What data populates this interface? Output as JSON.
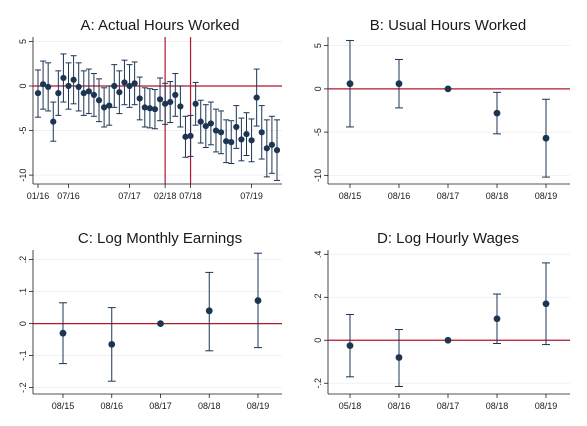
{
  "chart_data": [
    {
      "type": "scatter",
      "title": "A: Actual Hours Worked",
      "x_tick_labels": [
        "01/16",
        "07/16",
        "07/17",
        "02/18",
        "07/18",
        "07/19"
      ],
      "y_ticks": [
        5,
        0,
        -5,
        -10
      ],
      "ylim": [
        -11,
        5.5
      ],
      "grid": true,
      "reference_lines": {
        "y": 0,
        "x_labels": [
          "02/18",
          "07/18"
        ]
      },
      "points": [
        {
          "x": "01/16",
          "y": -0.8,
          "lo": -3.5,
          "hi": 1.8
        },
        {
          "x": "02/16",
          "y": 0.2,
          "lo": -2.6,
          "hi": 2.8
        },
        {
          "x": "03/16",
          "y": -0.1,
          "lo": -2.8,
          "hi": 2.6
        },
        {
          "x": "04/16",
          "y": -4.0,
          "lo": -6.2,
          "hi": -1.8
        },
        {
          "x": "05/16",
          "y": -0.8,
          "lo": -3.3,
          "hi": 1.7
        },
        {
          "x": "06/16",
          "y": 0.9,
          "lo": -1.8,
          "hi": 3.6
        },
        {
          "x": "07/16",
          "y": 0.0,
          "lo": -2.6,
          "hi": 2.6
        },
        {
          "x": "08/16",
          "y": 0.7,
          "lo": -2.0,
          "hi": 3.4
        },
        {
          "x": "09/16",
          "y": -0.1,
          "lo": -2.8,
          "hi": 2.6
        },
        {
          "x": "10/16",
          "y": -0.8,
          "lo": -3.3,
          "hi": 1.7
        },
        {
          "x": "11/16",
          "y": -0.6,
          "lo": -3.1,
          "hi": 1.9
        },
        {
          "x": "12/16",
          "y": -1.0,
          "lo": -3.4,
          "hi": 1.4
        },
        {
          "x": "01/17",
          "y": -1.6,
          "lo": -4.0,
          "hi": 0.8
        },
        {
          "x": "02/17",
          "y": -2.4,
          "lo": -4.6,
          "hi": -0.2
        },
        {
          "x": "03/17",
          "y": -2.2,
          "lo": -4.4,
          "hi": 0.0
        },
        {
          "x": "04/17",
          "y": 0.0,
          "lo": -2.4,
          "hi": 2.4
        },
        {
          "x": "05/17",
          "y": -0.7,
          "lo": -3.1,
          "hi": 1.7
        },
        {
          "x": "06/17",
          "y": 0.4,
          "lo": -2.1,
          "hi": 2.9
        },
        {
          "x": "07/17",
          "y": 0.0,
          "lo": -2.4,
          "hi": 2.4
        },
        {
          "x": "08/17",
          "y": 0.3,
          "lo": -2.1,
          "hi": 2.7
        },
        {
          "x": "09/17",
          "y": -1.4,
          "lo": -3.8,
          "hi": 1.0
        },
        {
          "x": "10/17",
          "y": -2.4,
          "lo": -4.6,
          "hi": -0.2
        },
        {
          "x": "11/17",
          "y": -2.5,
          "lo": -4.7,
          "hi": -0.3
        },
        {
          "x": "12/17",
          "y": -2.6,
          "lo": -4.8,
          "hi": -0.4
        },
        {
          "x": "01/18",
          "y": -1.5,
          "lo": -3.9,
          "hi": 0.9
        },
        {
          "x": "02/18",
          "y": -2.0,
          "lo": -4.3,
          "hi": 0.3
        },
        {
          "x": "03/18",
          "y": -1.8,
          "lo": -4.1,
          "hi": 0.5
        },
        {
          "x": "04/18",
          "y": -1.0,
          "lo": -3.4,
          "hi": 1.4
        },
        {
          "x": "05/18",
          "y": -2.3,
          "lo": -4.6,
          "hi": 0.0
        },
        {
          "x": "06/18",
          "y": -5.7,
          "lo": -8.0,
          "hi": -3.4
        },
        {
          "x": "07/18",
          "y": -5.6,
          "lo": -7.9,
          "hi": -3.3
        },
        {
          "x": "08/18",
          "y": -2.0,
          "lo": -4.4,
          "hi": 0.4
        },
        {
          "x": "09/18",
          "y": -4.0,
          "lo": -6.4,
          "hi": -1.6
        },
        {
          "x": "10/18",
          "y": -4.5,
          "lo": -6.9,
          "hi": -2.1
        },
        {
          "x": "11/18",
          "y": -4.2,
          "lo": -6.6,
          "hi": -1.8
        },
        {
          "x": "12/18",
          "y": -5.0,
          "lo": -7.4,
          "hi": -2.6
        },
        {
          "x": "01/19",
          "y": -5.2,
          "lo": -7.6,
          "hi": -2.8
        },
        {
          "x": "02/19",
          "y": -6.2,
          "lo": -8.6,
          "hi": -3.8
        },
        {
          "x": "03/19",
          "y": -6.3,
          "lo": -8.7,
          "hi": -3.9
        },
        {
          "x": "04/19",
          "y": -4.6,
          "lo": -7.0,
          "hi": -2.2
        },
        {
          "x": "05/19",
          "y": -6.0,
          "lo": -8.4,
          "hi": -3.6
        },
        {
          "x": "06/19",
          "y": -5.4,
          "lo": -7.8,
          "hi": -3.0
        },
        {
          "x": "07/19",
          "y": -6.1,
          "lo": -8.5,
          "hi": -3.7
        },
        {
          "x": "08/19",
          "y": -1.3,
          "lo": -4.5,
          "hi": 1.9
        },
        {
          "x": "09/19",
          "y": -5.2,
          "lo": -8.2,
          "hi": -2.2
        },
        {
          "x": "10/19",
          "y": -7.0,
          "lo": -10.2,
          "hi": -3.8
        },
        {
          "x": "11/19",
          "y": -6.6,
          "lo": -9.8,
          "hi": -3.4
        },
        {
          "x": "12/19",
          "y": -7.2,
          "lo": -10.6,
          "hi": -3.8
        }
      ]
    },
    {
      "type": "scatter",
      "title": "B: Usual Hours Worked",
      "x_tick_labels": [
        "08/15",
        "08/16",
        "08/17",
        "08/18",
        "08/19"
      ],
      "y_ticks": [
        5,
        0,
        -5,
        -10
      ],
      "ylim": [
        -11,
        6
      ],
      "grid": true,
      "reference_lines": {
        "y": 0
      },
      "points": [
        {
          "x": "08/15",
          "y": 0.6,
          "lo": -4.4,
          "hi": 5.6
        },
        {
          "x": "08/16",
          "y": 0.6,
          "lo": -2.2,
          "hi": 3.4
        },
        {
          "x": "08/17",
          "y": 0.0
        },
        {
          "x": "08/18",
          "y": -2.8,
          "lo": -5.2,
          "hi": -0.4
        },
        {
          "x": "08/19",
          "y": -5.7,
          "lo": -10.2,
          "hi": -1.2
        }
      ]
    },
    {
      "type": "scatter",
      "title": "C: Log Monthly Earnings",
      "x_tick_labels": [
        "08/15",
        "08/16",
        "08/17",
        "08/18",
        "08/19"
      ],
      "y_tick_labels": [
        ".2",
        ".1",
        "0",
        "-.1",
        "-.2"
      ],
      "y_ticks": [
        0.2,
        0.1,
        0,
        -0.1,
        -0.2
      ],
      "ylim": [
        -0.22,
        0.23
      ],
      "grid": true,
      "reference_lines": {
        "y": 0
      },
      "points": [
        {
          "x": "08/15",
          "y": -0.03,
          "lo": -0.125,
          "hi": 0.065
        },
        {
          "x": "08/16",
          "y": -0.065,
          "lo": -0.18,
          "hi": 0.05
        },
        {
          "x": "08/17",
          "y": 0.0
        },
        {
          "x": "08/18",
          "y": 0.04,
          "lo": -0.085,
          "hi": 0.16
        },
        {
          "x": "08/19",
          "y": 0.072,
          "lo": -0.075,
          "hi": 0.22
        }
      ]
    },
    {
      "type": "scatter",
      "title": "D: Log Hourly Wages",
      "x_tick_labels": [
        "05/18",
        "08/16",
        "08/17",
        "08/18",
        "08/19"
      ],
      "y_tick_labels": [
        ".4",
        ".2",
        "0",
        "-.2"
      ],
      "y_ticks": [
        0.4,
        0.2,
        0,
        -0.2
      ],
      "ylim": [
        -0.25,
        0.42
      ],
      "grid": true,
      "reference_lines": {
        "y": 0
      },
      "points": [
        {
          "x": "05/18",
          "y": -0.025,
          "lo": -0.17,
          "hi": 0.12
        },
        {
          "x": "08/16",
          "y": -0.08,
          "lo": -0.215,
          "hi": 0.05
        },
        {
          "x": "08/17",
          "y": 0.0
        },
        {
          "x": "08/18",
          "y": 0.1,
          "lo": -0.015,
          "hi": 0.215
        },
        {
          "x": "08/19",
          "y": 0.17,
          "lo": -0.02,
          "hi": 0.36
        }
      ]
    }
  ],
  "colors": {
    "marker": "#1c3553",
    "reference_line": "#b2182b",
    "grid": "#eeeeee",
    "axis": "#1a1a1a"
  }
}
